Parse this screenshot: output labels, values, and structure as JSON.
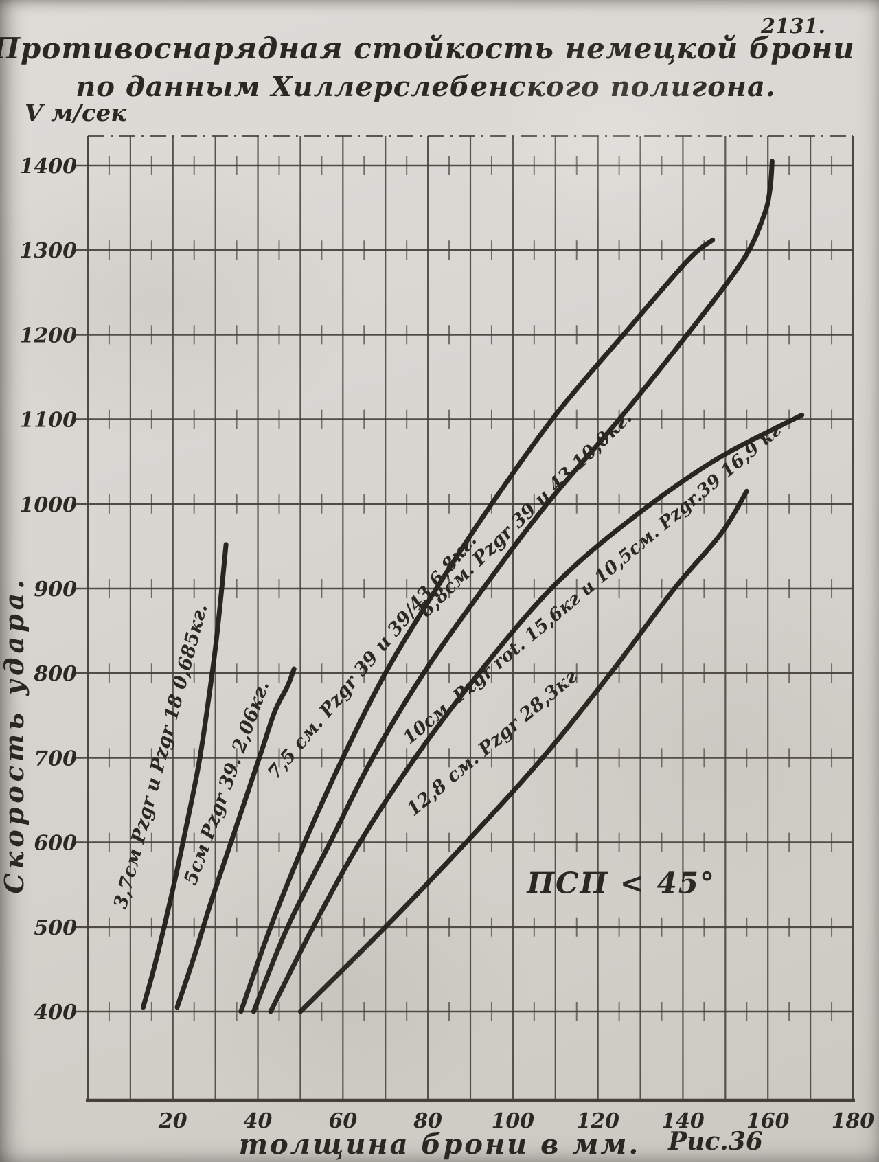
{
  "page": {
    "number": "2131.",
    "title_line1": "Противоснарядная стойкость немецкой брони",
    "title_line2": "по данным Хиллерслебенского полигона.",
    "figure_caption": "Рис.36"
  },
  "colors": {
    "paper": "#d7d5d0",
    "ink": "#2b2823",
    "grid": "#45413a",
    "curve": "#211e19"
  },
  "chart_data": {
    "type": "line",
    "title": "Противоснарядная стойкость немецкой брони по данным Хиллерслебенского полигона.",
    "xlabel": "толщина брони в мм.",
    "ylabel": "Скорость удара.",
    "y_unit_label": "V м/сек",
    "xlim": [
      0,
      180
    ],
    "ylim": [
      400,
      1400
    ],
    "x_ticks": [
      20,
      40,
      60,
      80,
      100,
      120,
      140,
      160,
      180
    ],
    "y_ticks": [
      400,
      500,
      600,
      700,
      800,
      900,
      1000,
      1100,
      1200,
      1300,
      1400
    ],
    "grid": "on",
    "legend_position": "labels-along-curves",
    "annotation": {
      "text": "ПСП < 45°",
      "x_mm": 125.5,
      "v": 540
    },
    "series": [
      {
        "name": "37mm-pzgr-and-pzgr18",
        "label": "3,7см Pzgr и Pzgr 18 0,685кг.",
        "points": [
          [
            13,
            405
          ],
          [
            16,
            460
          ],
          [
            20,
            545
          ],
          [
            23,
            615
          ],
          [
            26,
            690
          ],
          [
            28,
            755
          ],
          [
            30,
            830
          ],
          [
            31.5,
            900
          ],
          [
            32.5,
            952
          ]
        ],
        "label_anchor": {
          "x_mm": 18.5,
          "v": 700
        },
        "label_rotation": -75,
        "label_size": 27
      },
      {
        "name": "50mm-pzgr39",
        "label": "5см Pzgr 39. 2,06кг.",
        "points": [
          [
            21,
            405
          ],
          [
            25,
            465
          ],
          [
            29,
            530
          ],
          [
            33,
            590
          ],
          [
            37,
            650
          ],
          [
            41,
            710
          ],
          [
            44,
            755
          ],
          [
            47,
            785
          ],
          [
            48.5,
            805
          ]
        ],
        "label_anchor": {
          "x_mm": 34,
          "v": 668
        },
        "label_rotation": -70,
        "label_size": 27
      },
      {
        "name": "75mm-pzgr39-and-3943",
        "label": "7,5 см. Pzgr 39 и 39/43 6,8кг.",
        "points": [
          [
            36,
            400
          ],
          [
            43,
            500
          ],
          [
            51,
            600
          ],
          [
            60,
            700
          ],
          [
            70,
            800
          ],
          [
            82,
            900
          ],
          [
            95,
            1000
          ],
          [
            110,
            1105
          ],
          [
            126,
            1200
          ],
          [
            141,
            1287
          ],
          [
            147,
            1312
          ]
        ],
        "label_anchor": {
          "x_mm": 68,
          "v": 815
        },
        "label_rotation": -50,
        "label_size": 27
      },
      {
        "name": "88mm-pzgr39-and-43",
        "label": "8,8см. Pzgr 39 и 43 10,0кг.",
        "points": [
          [
            39,
            400
          ],
          [
            47,
            500
          ],
          [
            57,
            600
          ],
          [
            67,
            700
          ],
          [
            79,
            800
          ],
          [
            93,
            900
          ],
          [
            108,
            1000
          ],
          [
            125,
            1100
          ],
          [
            141,
            1200
          ],
          [
            154,
            1287
          ],
          [
            159,
            1340
          ],
          [
            160.5,
            1372
          ],
          [
            161,
            1405
          ]
        ],
        "label_anchor": {
          "x_mm": 104,
          "v": 983
        },
        "label_rotation": -44,
        "label_size": 27
      },
      {
        "name": "100mm-pzgr-rot-and-105mm-pzgr39",
        "label": "10см. Pzgr rot. 15,6кг и 10,5см. Pzgr.39 16,9 кг",
        "points": [
          [
            43,
            400
          ],
          [
            53,
            500
          ],
          [
            64,
            600
          ],
          [
            77,
            700
          ],
          [
            92,
            800
          ],
          [
            109,
            900
          ],
          [
            126,
            975
          ],
          [
            147,
            1050
          ],
          [
            168,
            1105
          ]
        ],
        "label_anchor": {
          "x_mm": 119.5,
          "v": 900
        },
        "label_rotation": -40,
        "label_size": 26
      },
      {
        "name": "128mm-pzgr",
        "label": "12,8 см. Pzgr 28,3кг",
        "points": [
          [
            50,
            400
          ],
          [
            70,
            500
          ],
          [
            89,
            600
          ],
          [
            107,
            700
          ],
          [
            123,
            800
          ],
          [
            138,
            900
          ],
          [
            149,
            965
          ],
          [
            155,
            1015
          ]
        ],
        "label_anchor": {
          "x_mm": 96,
          "v": 712
        },
        "label_rotation": -40,
        "label_size": 27
      }
    ]
  }
}
